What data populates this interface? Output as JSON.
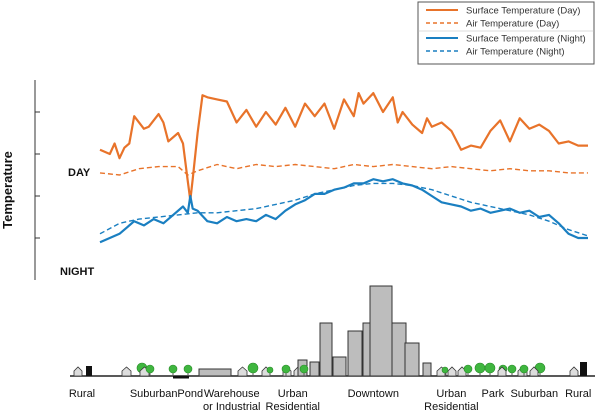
{
  "chart_data": {
    "type": "line",
    "ylabel": "Temperature",
    "row_labels": {
      "day": "DAY",
      "night": "NIGHT"
    },
    "legend_position": "top-right",
    "x_range": [
      0,
      100
    ],
    "y_range": [
      0,
      100
    ],
    "y_ticks": [
      20,
      40,
      60,
      80
    ],
    "grid": false,
    "colors": {
      "day": "#e8732a",
      "night": "#1a7fc1"
    },
    "series": [
      {
        "name": "Surface Temperature (Day)",
        "group": "day",
        "style": "solid",
        "x": [
          0,
          2,
          3,
          4,
          5,
          6,
          7,
          9,
          10,
          12,
          13,
          14,
          16,
          17,
          18,
          18.5,
          19,
          20,
          21,
          22,
          24,
          26,
          28,
          30,
          32,
          34,
          36,
          38,
          40,
          42,
          44,
          46,
          48,
          50,
          52,
          53,
          54,
          56,
          58,
          60,
          61,
          62,
          64,
          66,
          67,
          68,
          70,
          72,
          74,
          76,
          78,
          80,
          82,
          84,
          86,
          88,
          90,
          92,
          94,
          96,
          98,
          100
        ],
        "values": [
          62,
          60,
          65,
          58,
          63,
          65,
          78,
          72,
          73,
          79,
          75,
          66,
          70,
          65,
          47,
          38,
          48,
          70,
          88,
          87,
          86,
          85,
          75,
          81,
          73,
          80,
          74,
          82,
          73,
          84,
          78,
          84,
          72,
          86,
          78,
          89,
          84,
          89,
          80,
          87,
          75,
          80,
          74,
          70,
          77,
          73,
          75,
          71,
          62,
          64,
          63,
          71,
          76,
          66,
          77,
          72,
          74,
          71,
          65,
          66,
          64,
          64
        ]
      },
      {
        "name": "Air Temperature  (Day)",
        "group": "day",
        "style": "dashed",
        "x": [
          0,
          4,
          8,
          12,
          16,
          18,
          20,
          24,
          28,
          32,
          36,
          40,
          44,
          48,
          52,
          56,
          60,
          64,
          68,
          72,
          76,
          80,
          84,
          88,
          92,
          96,
          100
        ],
        "values": [
          51,
          50,
          53,
          54,
          54,
          50,
          52,
          55,
          53,
          55,
          54,
          55,
          54,
          53,
          55,
          54,
          55,
          54,
          53,
          54,
          53,
          52,
          53,
          52,
          52,
          51,
          51
        ]
      },
      {
        "name": "Surface Temperature (Night)",
        "group": "night",
        "style": "solid",
        "x": [
          0,
          4,
          7,
          9,
          11,
          13,
          15,
          17,
          18,
          18.5,
          19,
          20,
          22,
          24,
          26,
          28,
          30,
          32,
          34,
          36,
          38,
          40,
          42,
          44,
          46,
          48,
          50,
          52,
          54,
          56,
          58,
          60,
          62,
          64,
          66,
          68,
          70,
          72,
          74,
          76,
          78,
          80,
          82,
          84,
          86,
          88,
          90,
          92,
          94,
          96,
          98,
          100
        ],
        "values": [
          18,
          22,
          28,
          26,
          29,
          27,
          31,
          35,
          32,
          40,
          34,
          33,
          28,
          27,
          30,
          28,
          29,
          28,
          31,
          29,
          33,
          36,
          38,
          41,
          41,
          43,
          44,
          46,
          46,
          48,
          47,
          48,
          46,
          45,
          43,
          40,
          37,
          36,
          35,
          33,
          34,
          32,
          33,
          34,
          32,
          33,
          30,
          31,
          27,
          22,
          20,
          20
        ]
      },
      {
        "name": "Air Temperature (Night)",
        "group": "night",
        "style": "dashed",
        "x": [
          0,
          4,
          8,
          12,
          16,
          20,
          24,
          28,
          32,
          36,
          40,
          44,
          48,
          52,
          56,
          60,
          64,
          68,
          72,
          76,
          80,
          84,
          88,
          92,
          96,
          100
        ],
        "values": [
          22,
          27,
          29,
          30,
          31,
          32,
          32,
          33,
          34,
          36,
          38,
          41,
          43,
          45,
          46,
          46,
          45,
          43,
          40,
          37,
          35,
          33,
          31,
          28,
          24,
          21
        ]
      }
    ],
    "categories": [
      {
        "label": "Rural",
        "x": 1.5
      },
      {
        "label": "Suburban",
        "x": 11
      },
      {
        "label": "Pond",
        "x": 18.5
      },
      {
        "label": "Warehouse\nor Industrial",
        "x": 27
      },
      {
        "label": "Urban\nResidential",
        "x": 39.5
      },
      {
        "label": "Downtown",
        "x": 56
      },
      {
        "label": "Urban\nResidential",
        "x": 72
      },
      {
        "label": "Park",
        "x": 80.5
      },
      {
        "label": "Suburban",
        "x": 89
      },
      {
        "label": "Rural",
        "x": 98
      }
    ]
  }
}
